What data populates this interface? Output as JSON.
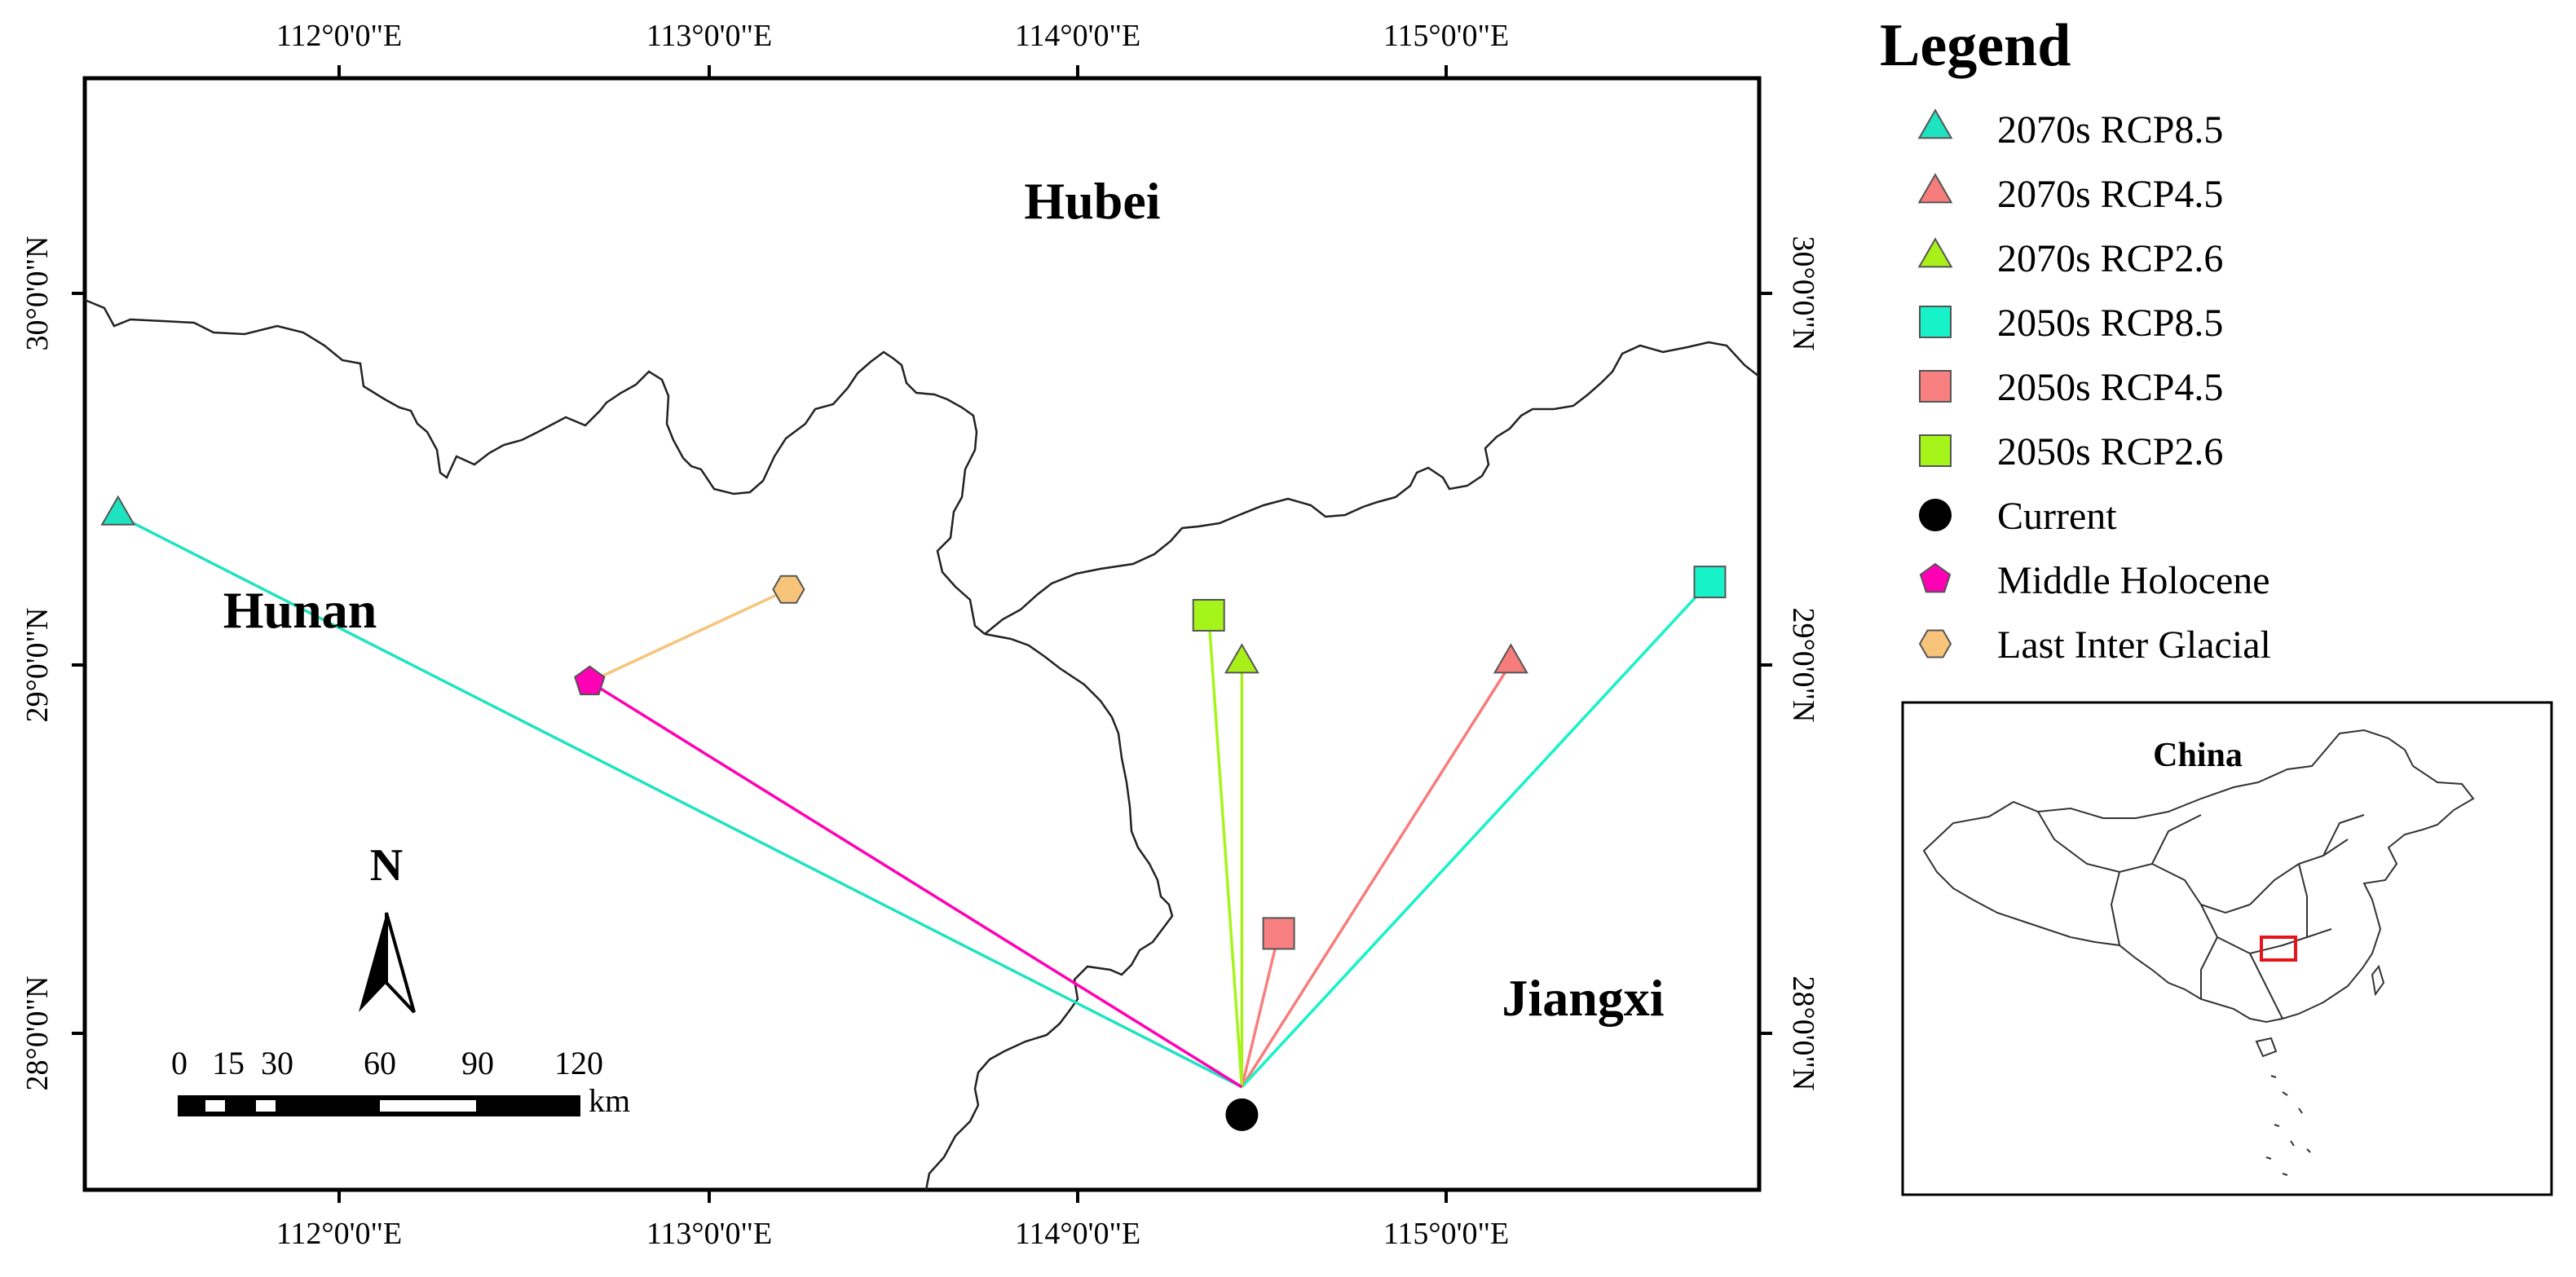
{
  "legend": {
    "title": "Legend",
    "items": [
      {
        "label": "2070s RCP8.5",
        "shape": "triangle",
        "color": "#1ee3c0"
      },
      {
        "label": "2070s RCP4.5",
        "shape": "triangle",
        "color": "#f77c7c"
      },
      {
        "label": "2070s RCP2.6",
        "shape": "triangle",
        "color": "#a9f01a"
      },
      {
        "label": "2050s RCP8.5",
        "shape": "square",
        "color": "#17f2c8"
      },
      {
        "label": "2050s RCP4.5",
        "shape": "square",
        "color": "#f88080"
      },
      {
        "label": "2050s RCP2.6",
        "shape": "square",
        "color": "#a6f51a"
      },
      {
        "label": "Current",
        "shape": "circle",
        "color": "#000000"
      },
      {
        "label": "Middle Holocene",
        "shape": "pentagon",
        "color": "#ff00b4"
      },
      {
        "label": "Last Inter Glacial",
        "shape": "hexagon",
        "color": "#f7c47a"
      }
    ]
  },
  "map": {
    "lon_ticks": [
      "112°0'0\"E",
      "113°0'0\"E",
      "114°0'0\"E",
      "115°0'0\"E"
    ],
    "lat_ticks": [
      "30°0'0\"N",
      "29°0'0\"N",
      "28°0'0\"N"
    ],
    "regions": {
      "hubei": "Hubei",
      "hunan": "Hunan",
      "jiangxi": "Jiangxi"
    },
    "north_label": "N",
    "scale": {
      "ticks": [
        "0",
        "15",
        "30",
        "60",
        "90",
        "120"
      ],
      "unit": "km"
    }
  },
  "inset": {
    "title": "China",
    "highlight_color": "#e8141c"
  },
  "chart_data": {
    "type": "scatter",
    "title": "",
    "xlabel": "",
    "ylabel": "",
    "xlim": [
      111.35,
      115.85
    ],
    "ylim": [
      27.55,
      29.95
    ],
    "origin": {
      "name": "Current",
      "lon": 114.45,
      "lat": 27.78
    },
    "series": [
      {
        "name": "2070s RCP8.5",
        "lon": 111.4,
        "lat": 29.4,
        "shape": "triangle",
        "color": "#1ee3c0"
      },
      {
        "name": "2070s RCP4.5",
        "lon": 115.18,
        "lat": 29.0,
        "shape": "triangle",
        "color": "#f77c7c"
      },
      {
        "name": "2070s RCP2.6",
        "lon": 114.45,
        "lat": 29.0,
        "shape": "triangle",
        "color": "#a9f01a"
      },
      {
        "name": "2050s RCP8.5",
        "lon": 115.72,
        "lat": 29.22,
        "shape": "square",
        "color": "#17f2c8"
      },
      {
        "name": "2050s RCP4.5",
        "lon": 114.55,
        "lat": 28.27,
        "shape": "square",
        "color": "#f88080"
      },
      {
        "name": "2050s RCP2.6",
        "lon": 114.36,
        "lat": 29.13,
        "shape": "square",
        "color": "#a6f51a"
      },
      {
        "name": "Middle Holocene",
        "lon": 112.68,
        "lat": 28.95,
        "shape": "pentagon",
        "color": "#ff00b4"
      },
      {
        "name": "Last Inter Glacial",
        "lon": 113.22,
        "lat": 29.2,
        "shape": "hexagon",
        "color": "#f7c47a",
        "connects_to": "Middle Holocene"
      }
    ]
  }
}
